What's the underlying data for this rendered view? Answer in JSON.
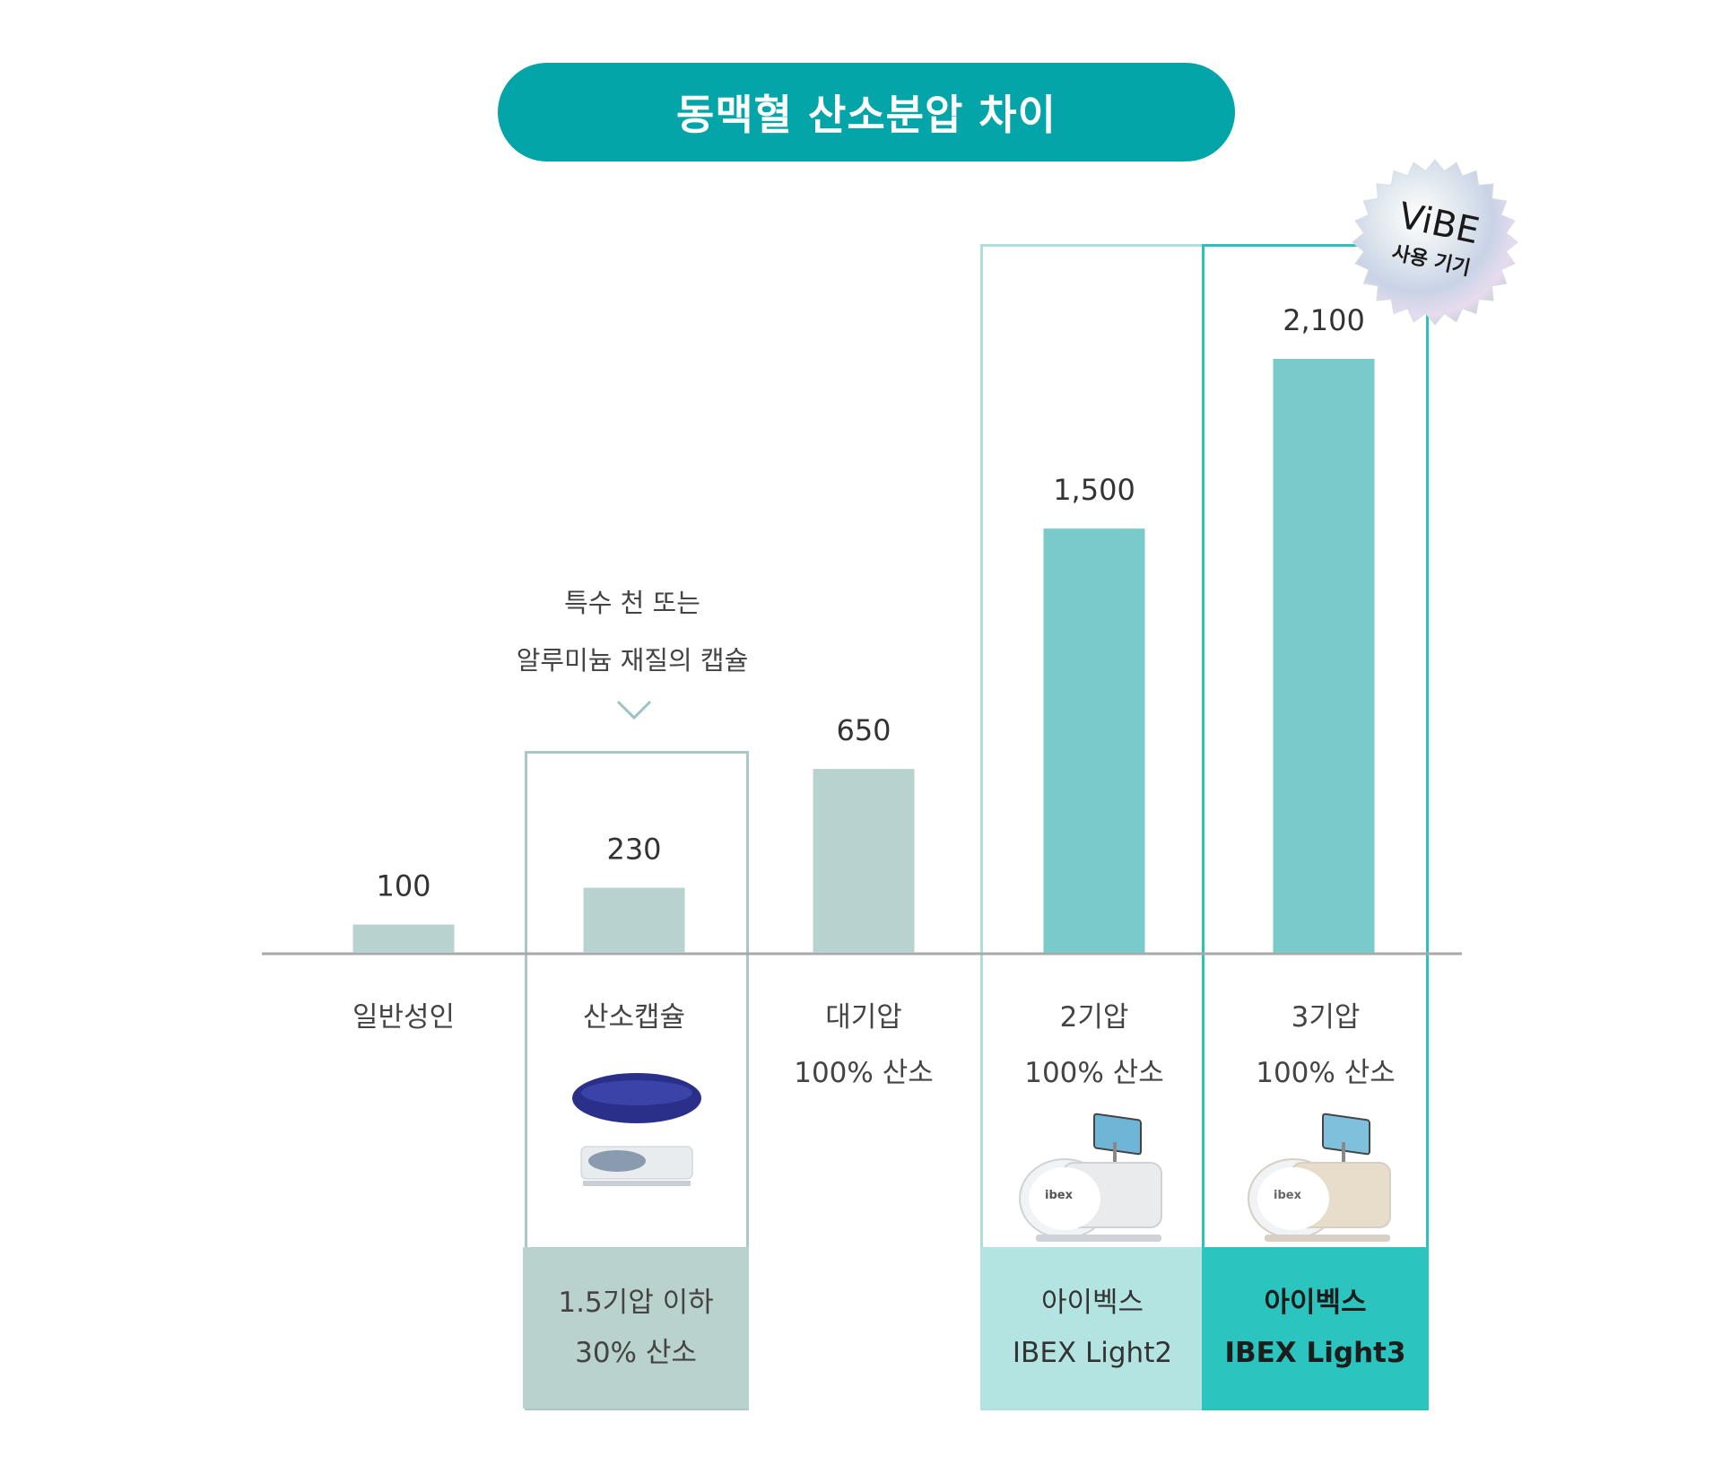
{
  "title": "동맥혈 산소분압 차이",
  "badge": {
    "brand": "ViBE",
    "caption": "사용 기기"
  },
  "note": {
    "line1": "특수 천 또는",
    "line2": "알루미늄 재질의 캡슐"
  },
  "colors": {
    "title_bg": "#04a5a9",
    "bar_gray": "#b8d3cf",
    "bar_teal": "#78cbc8",
    "accent": "#2bc1bc",
    "band_gray": "#b9d2cd",
    "band_light": "#b3e4e2",
    "band_accent": "#2bc4be"
  },
  "columns": [
    {
      "label1": "일반성인",
      "label2": "",
      "band1": "",
      "band2": "",
      "device_icon": ""
    },
    {
      "label1": "산소캡슐",
      "label2": "",
      "band1": "1.5기압 이하",
      "band2": "30% 산소",
      "device_icon": "oxygen-capsule-icon"
    },
    {
      "label1": "대기압",
      "label2": "100% 산소",
      "band1": "",
      "band2": "",
      "device_icon": ""
    },
    {
      "label1": "2기압",
      "label2": "100% 산소",
      "band1": "아이벡스",
      "band2": "IBEX Light2",
      "device_icon": "ibex-chamber-icon"
    },
    {
      "label1": "3기압",
      "label2": "100% 산소",
      "band1": "아이벡스",
      "band2": "IBEX Light3",
      "device_icon": "ibex-chamber-icon"
    }
  ],
  "chart_data": {
    "type": "bar",
    "title": "동맥혈 산소분압 차이",
    "categories": [
      "일반성인",
      "산소캡슐",
      "대기압",
      "2기압",
      "3기압"
    ],
    "values": [
      100,
      230,
      650,
      1500,
      2100
    ],
    "value_labels": [
      "100",
      "230",
      "650",
      "1,500",
      "2,100"
    ],
    "bar_colors": [
      "#b8d3cf",
      "#b8d3cf",
      "#b8d3cf",
      "#78cbc8",
      "#78cbc8"
    ],
    "ylim": [
      0,
      2100
    ],
    "grid": false,
    "legend": "none"
  }
}
